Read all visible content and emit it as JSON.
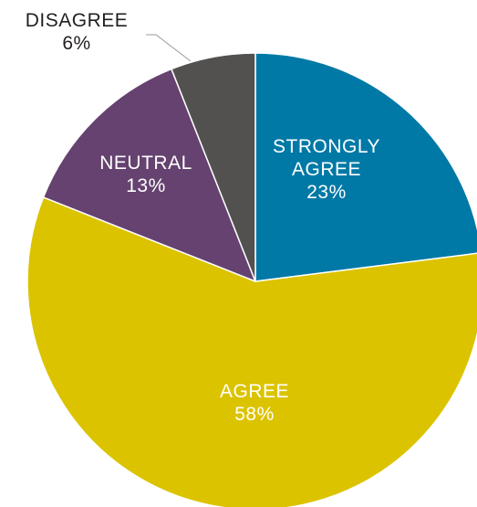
{
  "chart_data": {
    "type": "pie",
    "title": "",
    "slices": [
      {
        "label": [
          "STRONGLY",
          "AGREE"
        ],
        "value": 23,
        "value_label": "23%",
        "color": "#0079a6",
        "label_position": "inside"
      },
      {
        "label": [
          "AGREE"
        ],
        "value": 58,
        "value_label": "58%",
        "color": "#dcc300",
        "label_position": "inside"
      },
      {
        "label": [
          "NEUTRAL"
        ],
        "value": 13,
        "value_label": "13%",
        "color": "#65426f",
        "label_position": "inside"
      },
      {
        "label": [
          "DISAGREE"
        ],
        "value": 6,
        "value_label": "6%",
        "color": "#535150",
        "label_position": "outside"
      }
    ],
    "start_angle": "12 o'clock",
    "direction": "clockwise",
    "slice_border_color": "#ffffff",
    "legend": "none"
  }
}
